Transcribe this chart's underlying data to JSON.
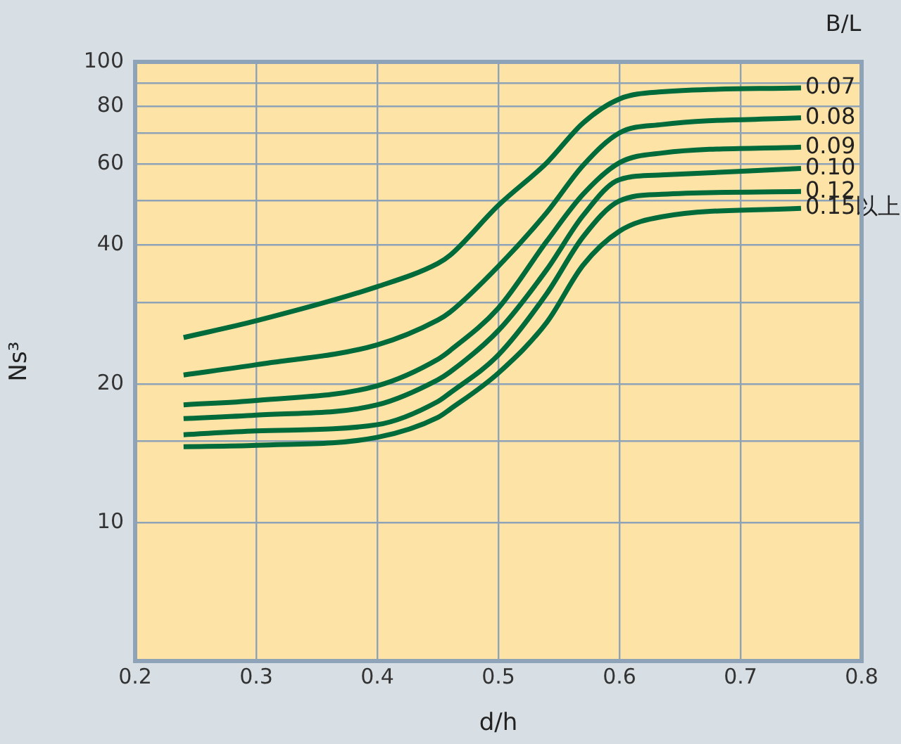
{
  "chart_data": {
    "type": "line",
    "xlabel": "d/h",
    "ylabel": "Ns³",
    "legend_title": "B/L",
    "x": [
      0.24,
      0.3,
      0.4,
      0.45,
      0.46,
      0.5,
      0.54,
      0.57,
      0.6,
      0.635,
      0.75
    ],
    "series": [
      {
        "name": "0.07",
        "color": "#006b3a",
        "values": [
          25.2,
          27.4,
          32.5,
          36.5,
          38.0,
          48.8,
          60.4,
          73.7,
          83.1,
          86.1,
          87.8
        ]
      },
      {
        "name": "0.08",
        "color": "#006b3a",
        "values": [
          20.9,
          22.0,
          24.3,
          27.5,
          28.6,
          36.0,
          47.1,
          59.6,
          70.1,
          73.1,
          75.6
        ]
      },
      {
        "name": "0.09",
        "color": "#006b3a",
        "values": [
          18.0,
          18.4,
          19.8,
          22.6,
          23.6,
          29.2,
          40.8,
          51.6,
          60.4,
          63.4,
          65.3
        ]
      },
      {
        "name": "0.10",
        "color": "#006b3a",
        "values": [
          16.8,
          17.1,
          18.0,
          20.4,
          21.2,
          26.1,
          35.4,
          46.4,
          55.5,
          56.8,
          58.7
        ]
      },
      {
        "name": "0.12",
        "color": "#006b3a",
        "values": [
          15.5,
          15.8,
          16.3,
          18.3,
          19.1,
          23.1,
          31.4,
          41.7,
          49.9,
          51.6,
          52.3
        ]
      },
      {
        "name": "0.15以上",
        "color": "#006b3a",
        "values": [
          14.6,
          14.7,
          15.3,
          16.9,
          17.6,
          21.1,
          27.2,
          36.2,
          42.9,
          46.1,
          48.1
        ]
      }
    ],
    "xlim": [
      0.2,
      0.8
    ],
    "xticks": [
      0.2,
      0.3,
      0.4,
      0.5,
      0.6,
      0.7,
      0.8
    ],
    "log": "y",
    "ylim": [
      5,
      100
    ],
    "yticks": [
      10,
      {
        "value": 15,
        "label": null
      },
      20,
      {
        "value": 30,
        "label": null
      },
      40,
      {
        "value": 50,
        "label": null
      },
      60,
      {
        "value": 70,
        "label": null
      },
      80,
      {
        "value": 90,
        "label": null
      },
      100
    ],
    "grid": true,
    "legend": false,
    "marker": "none",
    "line_style": "solid"
  }
}
